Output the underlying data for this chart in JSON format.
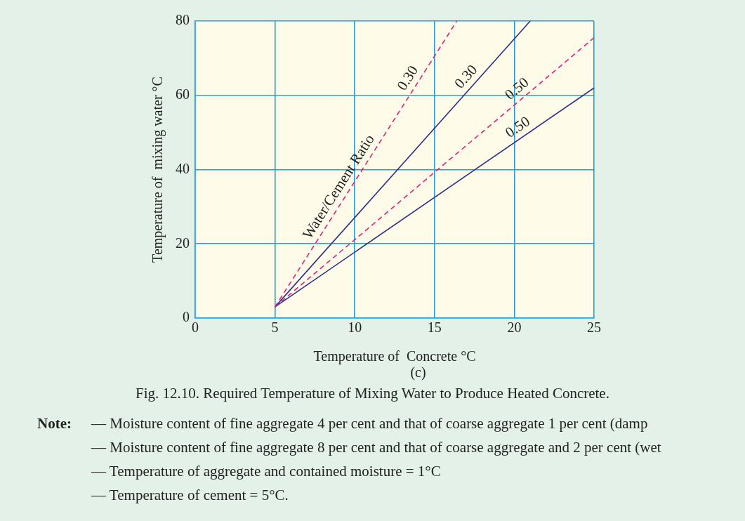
{
  "chart_data": {
    "type": "line",
    "title": "Fig. 12.10. Required Temperature of Mixing Water to Produce Heated Concrete.",
    "subtitle": "(c)",
    "xlabel": "Temperature of  Concrete °C",
    "ylabel": "Temperature of  mixing water °C",
    "xlim": [
      0,
      25
    ],
    "xticks": [
      0,
      5,
      10,
      15,
      20,
      25
    ],
    "ylim": [
      0,
      80
    ],
    "yticks": [
      0,
      20,
      40,
      60,
      80
    ],
    "grid": true,
    "marker": "none",
    "legend": false,
    "series": [
      {
        "name": "0.30",
        "color": "#e0207a",
        "line_style": "dashed",
        "x": [
          5,
          16.4
        ],
        "values": [
          3,
          80
        ]
      },
      {
        "name": "0.30",
        "color": "#2e2e8c",
        "line_style": "solid",
        "x": [
          5,
          21
        ],
        "values": [
          3,
          80
        ]
      },
      {
        "name": "0.50",
        "color": "#e0207a",
        "line_style": "dashed",
        "x": [
          5,
          25
        ],
        "values": [
          3,
          75.5
        ]
      },
      {
        "name": "0.50",
        "color": "#2e2e8c",
        "line_style": "solid",
        "x": [
          5,
          25
        ],
        "values": [
          3,
          62
        ]
      }
    ],
    "annotations": [
      "Water/Cement Ratio",
      "Note:",
      "— Moisture content of fine aggregate 4 per cent and that of coarse aggregate 1 per cent (damp",
      "— Moisture content of fine aggregate 8 per cent and that of coarse aggregate and 2 per cent (wet",
      "— Temperature of aggregate and contained moisture = 1°C",
      "— Temperature of cement = 5°C."
    ]
  }
}
